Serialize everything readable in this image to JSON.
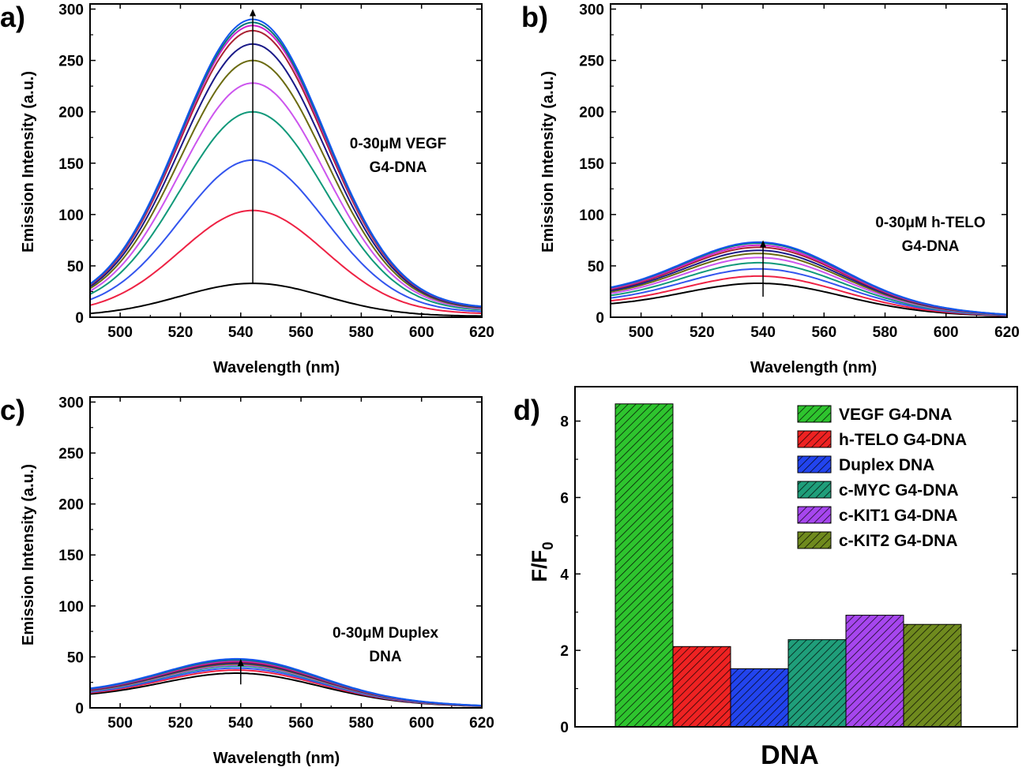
{
  "chart_data": [
    {
      "type": "line",
      "panel_label": "a)",
      "xlabel": "Wavelength (nm)",
      "ylabel": "Emission Intensity (a.u.)",
      "xlim": [
        490,
        620
      ],
      "ylim": [
        0,
        305
      ],
      "xticks": [
        500,
        520,
        540,
        560,
        580,
        600,
        620
      ],
      "yticks": [
        0,
        50,
        100,
        150,
        200,
        250,
        300
      ],
      "grid": false,
      "annotation_lines": [
        "0-30μM VEGF",
        "G4-DNA"
      ],
      "series_shape": {
        "center_nm": 544,
        "sigma_nm": 24,
        "edge_490": 0.035,
        "edge_620": 0.03
      },
      "peaks": [
        33,
        104,
        153,
        200,
        228,
        250,
        266,
        279,
        284,
        287,
        290
      ],
      "series_colors": [
        "#000000",
        "#ee2244",
        "#3355ee",
        "#11997a",
        "#cc55ee",
        "#6b6b11",
        "#1a1a88",
        "#aa2233",
        "#cc22cc",
        "#007777",
        "#1155ee"
      ],
      "arrow": {
        "x": 544,
        "y_from": 33,
        "y_to": 300
      }
    },
    {
      "type": "line",
      "panel_label": "b)",
      "xlabel": "Wavelength (nm)",
      "ylabel": "Emission Intensity (a.u.)",
      "xlim": [
        490,
        620
      ],
      "ylim": [
        0,
        305
      ],
      "xticks": [
        500,
        520,
        540,
        560,
        580,
        600,
        620
      ],
      "yticks": [
        0,
        50,
        100,
        150,
        200,
        250,
        300
      ],
      "grid": false,
      "annotation_lines": [
        "0-30μM h-TELO",
        "G4-DNA"
      ],
      "series_shape": {
        "center_nm": 540,
        "sigma_nm": 26,
        "edge_490": 0.27,
        "edge_620": 0.03
      },
      "peaks": [
        33,
        40,
        47,
        53,
        58,
        62,
        65,
        68,
        70,
        72,
        73
      ],
      "series_colors": [
        "#000000",
        "#ee2244",
        "#3355ee",
        "#11997a",
        "#cc55ee",
        "#6b6b11",
        "#1a1a88",
        "#aa2233",
        "#cc22cc",
        "#007777",
        "#1155ee"
      ],
      "arrow": {
        "x": 540,
        "y_from": 20,
        "y_to": 75
      }
    },
    {
      "type": "line",
      "panel_label": "c)",
      "xlabel": "Wavelength (nm)",
      "ylabel": "Emission Intensity (a.u.)",
      "xlim": [
        490,
        620
      ],
      "ylim": [
        0,
        305
      ],
      "xticks": [
        500,
        520,
        540,
        560,
        580,
        600,
        620
      ],
      "yticks": [
        0,
        50,
        100,
        150,
        200,
        250,
        300
      ],
      "grid": false,
      "annotation_lines": [
        "0-30μM Duplex",
        "DNA"
      ],
      "series_shape": {
        "center_nm": 540,
        "sigma_nm": 26,
        "edge_490": 0.27,
        "edge_620": 0.04
      },
      "peaks": [
        34,
        37,
        39,
        41,
        42,
        43,
        44,
        45,
        46,
        47,
        48
      ],
      "series_colors": [
        "#000000",
        "#ee2244",
        "#3355ee",
        "#11997a",
        "#cc55ee",
        "#6b6b11",
        "#1a1a88",
        "#aa2233",
        "#cc22cc",
        "#007777",
        "#1155ee"
      ],
      "arrow": {
        "x": 540,
        "y_from": 23,
        "y_to": 48
      }
    },
    {
      "type": "bar",
      "panel_label": "d)",
      "xlabel": "DNA",
      "ylabel": "F/F",
      "ylabel_subscript": "0",
      "ylim": [
        0,
        8.9
      ],
      "yticks": [
        0,
        2,
        4,
        6,
        8
      ],
      "grid": false,
      "legend_position": "top-right",
      "categories": [
        "VEGF G4-DNA",
        "h-TELO G4-DNA",
        "Duplex DNA",
        "c-MYC G4-DNA",
        "c-KIT1 G4-DNA",
        "c-KIT2 G4-DNA"
      ],
      "values": [
        8.45,
        2.1,
        1.52,
        2.28,
        2.92,
        2.68
      ],
      "colors": [
        "#2ec42e",
        "#ee2222",
        "#2244ee",
        "#1f9e7a",
        "#a646ee",
        "#6f8a1e"
      ]
    }
  ]
}
